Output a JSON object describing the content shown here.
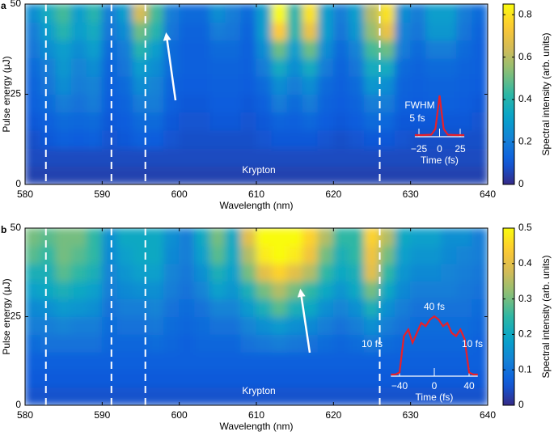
{
  "chart_data": [
    {
      "type": "heatmap",
      "panel": "a",
      "xlabel": "Wavelength (nm)",
      "ylabel": "Pulse energy (μJ)",
      "colorbar_label": "Spectral intensity (arb. units)",
      "colormap": "parula",
      "annotation": "Krypton",
      "xlim": [
        580,
        640
      ],
      "xticks": [
        580,
        590,
        600,
        610,
        620,
        630,
        640
      ],
      "ylim": [
        0,
        50
      ],
      "yticks": [
        0,
        25,
        50
      ],
      "zlim": [
        0,
        0.85
      ],
      "zticks": [
        0,
        0.2,
        0.4,
        0.6,
        0.8
      ],
      "reference_lines": [
        582.7,
        591.2,
        595.6,
        626
      ],
      "x": [
        581,
        583,
        585,
        587,
        589,
        591,
        593,
        595,
        597,
        599,
        601,
        603,
        605,
        607,
        609,
        611,
        613,
        615,
        617,
        619,
        621,
        623,
        625,
        627,
        629,
        631,
        633,
        635,
        637,
        639
      ],
      "y": [
        2.5,
        7.5,
        12.5,
        17.5,
        22.5,
        27.5,
        32.5,
        37.5,
        42.5,
        47.5
      ],
      "z": [
        [
          0.05,
          0.05,
          0.05,
          0.05,
          0.05,
          0.05,
          0.05,
          0.05,
          0.05,
          0.05,
          0.05,
          0.05,
          0.05,
          0.05,
          0.05,
          0.05,
          0.05,
          0.05,
          0.05,
          0.05,
          0.05,
          0.05,
          0.05,
          0.05,
          0.05,
          0.05,
          0.05,
          0.05,
          0.05,
          0.05
        ],
        [
          0.07,
          0.07,
          0.07,
          0.07,
          0.07,
          0.07,
          0.07,
          0.07,
          0.07,
          0.07,
          0.07,
          0.07,
          0.07,
          0.07,
          0.07,
          0.07,
          0.07,
          0.07,
          0.07,
          0.07,
          0.07,
          0.07,
          0.07,
          0.07,
          0.07,
          0.07,
          0.07,
          0.07,
          0.07,
          0.07
        ],
        [
          0.08,
          0.1,
          0.12,
          0.11,
          0.12,
          0.09,
          0.1,
          0.12,
          0.11,
          0.09,
          0.08,
          0.08,
          0.08,
          0.08,
          0.08,
          0.09,
          0.1,
          0.1,
          0.1,
          0.09,
          0.08,
          0.09,
          0.1,
          0.1,
          0.09,
          0.08,
          0.08,
          0.08,
          0.08,
          0.08
        ],
        [
          0.1,
          0.12,
          0.15,
          0.14,
          0.15,
          0.1,
          0.11,
          0.15,
          0.15,
          0.1,
          0.09,
          0.09,
          0.1,
          0.1,
          0.09,
          0.1,
          0.13,
          0.12,
          0.14,
          0.11,
          0.1,
          0.11,
          0.15,
          0.14,
          0.1,
          0.1,
          0.1,
          0.1,
          0.1,
          0.09
        ],
        [
          0.12,
          0.15,
          0.2,
          0.17,
          0.2,
          0.11,
          0.13,
          0.2,
          0.2,
          0.12,
          0.1,
          0.1,
          0.11,
          0.11,
          0.1,
          0.12,
          0.2,
          0.15,
          0.2,
          0.13,
          0.11,
          0.13,
          0.2,
          0.2,
          0.12,
          0.11,
          0.12,
          0.12,
          0.11,
          0.1
        ],
        [
          0.13,
          0.18,
          0.25,
          0.2,
          0.22,
          0.12,
          0.15,
          0.25,
          0.22,
          0.13,
          0.11,
          0.11,
          0.12,
          0.12,
          0.11,
          0.15,
          0.25,
          0.2,
          0.25,
          0.15,
          0.12,
          0.15,
          0.28,
          0.25,
          0.13,
          0.12,
          0.13,
          0.13,
          0.12,
          0.11
        ],
        [
          0.15,
          0.2,
          0.28,
          0.22,
          0.25,
          0.13,
          0.18,
          0.3,
          0.25,
          0.15,
          0.12,
          0.12,
          0.13,
          0.13,
          0.12,
          0.2,
          0.35,
          0.25,
          0.35,
          0.2,
          0.13,
          0.18,
          0.35,
          0.35,
          0.15,
          0.13,
          0.15,
          0.15,
          0.13,
          0.12
        ],
        [
          0.18,
          0.25,
          0.3,
          0.25,
          0.3,
          0.15,
          0.2,
          0.4,
          0.3,
          0.15,
          0.12,
          0.12,
          0.15,
          0.15,
          0.12,
          0.25,
          0.5,
          0.3,
          0.5,
          0.25,
          0.15,
          0.22,
          0.45,
          0.5,
          0.2,
          0.15,
          0.2,
          0.2,
          0.15,
          0.12
        ],
        [
          0.2,
          0.3,
          0.4,
          0.3,
          0.35,
          0.18,
          0.25,
          0.5,
          0.4,
          0.18,
          0.13,
          0.13,
          0.2,
          0.18,
          0.13,
          0.3,
          0.75,
          0.4,
          0.7,
          0.3,
          0.18,
          0.28,
          0.55,
          0.7,
          0.22,
          0.18,
          0.28,
          0.28,
          0.18,
          0.13
        ],
        [
          0.25,
          0.35,
          0.45,
          0.3,
          0.4,
          0.2,
          0.3,
          0.65,
          0.45,
          0.2,
          0.15,
          0.15,
          0.25,
          0.2,
          0.15,
          0.3,
          0.85,
          0.4,
          0.8,
          0.3,
          0.2,
          0.3,
          0.6,
          0.8,
          0.25,
          0.2,
          0.3,
          0.3,
          0.2,
          0.15
        ]
      ],
      "inset": {
        "type": "line",
        "color": "#e8202a",
        "xlabel": "Time (fs)",
        "xticks": [
          {
            "value": -25,
            "label": "−25"
          },
          0,
          25
        ],
        "annotations": [
          "FWHM",
          "5 fs"
        ],
        "x": [
          -30,
          -20,
          -10,
          -5,
          -2.5,
          0,
          2.5,
          5,
          10,
          20,
          30
        ],
        "values": [
          0.05,
          0.05,
          0.06,
          0.2,
          0.6,
          1,
          0.6,
          0.2,
          0.06,
          0.05,
          0.05
        ]
      }
    },
    {
      "type": "heatmap",
      "panel": "b",
      "xlabel": "Wavelength (nm)",
      "ylabel": "Pulse energy (μJ)",
      "colorbar_label": "Spectral intensity (arb. units)",
      "colormap": "parula",
      "annotation": "Krypton",
      "xlim": [
        580,
        640
      ],
      "xticks": [
        580,
        590,
        600,
        610,
        620,
        630,
        640
      ],
      "ylim": [
        0,
        50
      ],
      "yticks": [
        0,
        25,
        50
      ],
      "zlim": [
        0,
        0.5
      ],
      "zticks": [
        0,
        0.1,
        0.2,
        0.3,
        0.4,
        0.5
      ],
      "reference_lines": [
        582.7,
        591.2,
        595.6,
        626
      ],
      "x": [
        581,
        583,
        585,
        587,
        589,
        591,
        593,
        595,
        597,
        599,
        601,
        603,
        605,
        607,
        609,
        611,
        613,
        615,
        617,
        619,
        621,
        623,
        625,
        627,
        629,
        631,
        633,
        635,
        637,
        639
      ],
      "y": [
        2.5,
        7.5,
        12.5,
        17.5,
        22.5,
        27.5,
        32.5,
        37.5,
        42.5,
        47.5
      ],
      "z": [
        [
          0.05,
          0.05,
          0.05,
          0.05,
          0.05,
          0.05,
          0.05,
          0.05,
          0.05,
          0.05,
          0.05,
          0.05,
          0.05,
          0.05,
          0.05,
          0.05,
          0.05,
          0.05,
          0.05,
          0.05,
          0.05,
          0.05,
          0.05,
          0.05,
          0.05,
          0.05,
          0.05,
          0.05,
          0.05,
          0.05
        ],
        [
          0.06,
          0.06,
          0.06,
          0.06,
          0.06,
          0.06,
          0.06,
          0.06,
          0.06,
          0.06,
          0.06,
          0.06,
          0.06,
          0.06,
          0.06,
          0.06,
          0.06,
          0.06,
          0.06,
          0.06,
          0.06,
          0.06,
          0.06,
          0.06,
          0.06,
          0.06,
          0.06,
          0.06,
          0.06,
          0.06
        ],
        [
          0.07,
          0.07,
          0.07,
          0.07,
          0.07,
          0.07,
          0.07,
          0.07,
          0.07,
          0.07,
          0.07,
          0.07,
          0.07,
          0.07,
          0.07,
          0.07,
          0.07,
          0.07,
          0.07,
          0.07,
          0.07,
          0.07,
          0.07,
          0.07,
          0.07,
          0.07,
          0.07,
          0.07,
          0.07,
          0.07
        ],
        [
          0.09,
          0.1,
          0.1,
          0.1,
          0.1,
          0.08,
          0.08,
          0.08,
          0.09,
          0.08,
          0.07,
          0.08,
          0.08,
          0.08,
          0.1,
          0.11,
          0.12,
          0.11,
          0.1,
          0.09,
          0.08,
          0.09,
          0.11,
          0.09,
          0.08,
          0.08,
          0.08,
          0.08,
          0.08,
          0.07
        ],
        [
          0.12,
          0.12,
          0.13,
          0.12,
          0.12,
          0.09,
          0.1,
          0.1,
          0.11,
          0.09,
          0.08,
          0.09,
          0.1,
          0.1,
          0.13,
          0.15,
          0.17,
          0.15,
          0.14,
          0.12,
          0.1,
          0.12,
          0.15,
          0.12,
          0.1,
          0.09,
          0.09,
          0.09,
          0.09,
          0.08
        ],
        [
          0.14,
          0.15,
          0.17,
          0.16,
          0.15,
          0.1,
          0.12,
          0.12,
          0.13,
          0.1,
          0.09,
          0.1,
          0.13,
          0.13,
          0.17,
          0.22,
          0.28,
          0.22,
          0.2,
          0.15,
          0.13,
          0.15,
          0.22,
          0.15,
          0.12,
          0.1,
          0.1,
          0.1,
          0.1,
          0.09
        ],
        [
          0.18,
          0.2,
          0.22,
          0.2,
          0.18,
          0.12,
          0.14,
          0.15,
          0.15,
          0.12,
          0.1,
          0.13,
          0.18,
          0.16,
          0.22,
          0.3,
          0.35,
          0.3,
          0.25,
          0.2,
          0.16,
          0.2,
          0.3,
          0.2,
          0.14,
          0.12,
          0.12,
          0.12,
          0.11,
          0.1
        ],
        [
          0.22,
          0.22,
          0.28,
          0.25,
          0.22,
          0.13,
          0.16,
          0.18,
          0.18,
          0.13,
          0.11,
          0.15,
          0.22,
          0.18,
          0.3,
          0.4,
          0.45,
          0.4,
          0.35,
          0.25,
          0.2,
          0.22,
          0.4,
          0.25,
          0.16,
          0.14,
          0.14,
          0.13,
          0.12,
          0.11
        ],
        [
          0.28,
          0.25,
          0.3,
          0.28,
          0.25,
          0.14,
          0.18,
          0.2,
          0.2,
          0.14,
          0.12,
          0.18,
          0.28,
          0.2,
          0.35,
          0.48,
          0.5,
          0.48,
          0.42,
          0.3,
          0.22,
          0.25,
          0.42,
          0.3,
          0.18,
          0.16,
          0.16,
          0.14,
          0.13,
          0.12
        ],
        [
          0.3,
          0.28,
          0.3,
          0.3,
          0.25,
          0.15,
          0.2,
          0.2,
          0.2,
          0.15,
          0.12,
          0.2,
          0.3,
          0.2,
          0.4,
          0.5,
          0.5,
          0.5,
          0.45,
          0.35,
          0.25,
          0.25,
          0.45,
          0.35,
          0.2,
          0.18,
          0.18,
          0.15,
          0.15,
          0.12
        ]
      ],
      "inset": {
        "type": "line",
        "color": "#e8202a",
        "xlabel": "Time (fs)",
        "xticks": [
          {
            "value": -40,
            "label": "−40"
          },
          0,
          40
        ],
        "annotations": [
          "40 fs",
          "10 fs",
          "10 fs"
        ],
        "x": [
          -50,
          -45,
          -40,
          -35,
          -30,
          -25,
          -20,
          -15,
          -10,
          -5,
          0,
          5,
          10,
          15,
          20,
          25,
          30,
          35,
          40,
          45,
          50
        ],
        "values": [
          0.02,
          0.02,
          0.05,
          0.6,
          0.7,
          0.5,
          0.65,
          0.8,
          0.75,
          0.85,
          0.9,
          0.85,
          0.75,
          0.8,
          0.65,
          0.6,
          0.7,
          0.55,
          0.05,
          0.02,
          0.02
        ]
      }
    }
  ]
}
